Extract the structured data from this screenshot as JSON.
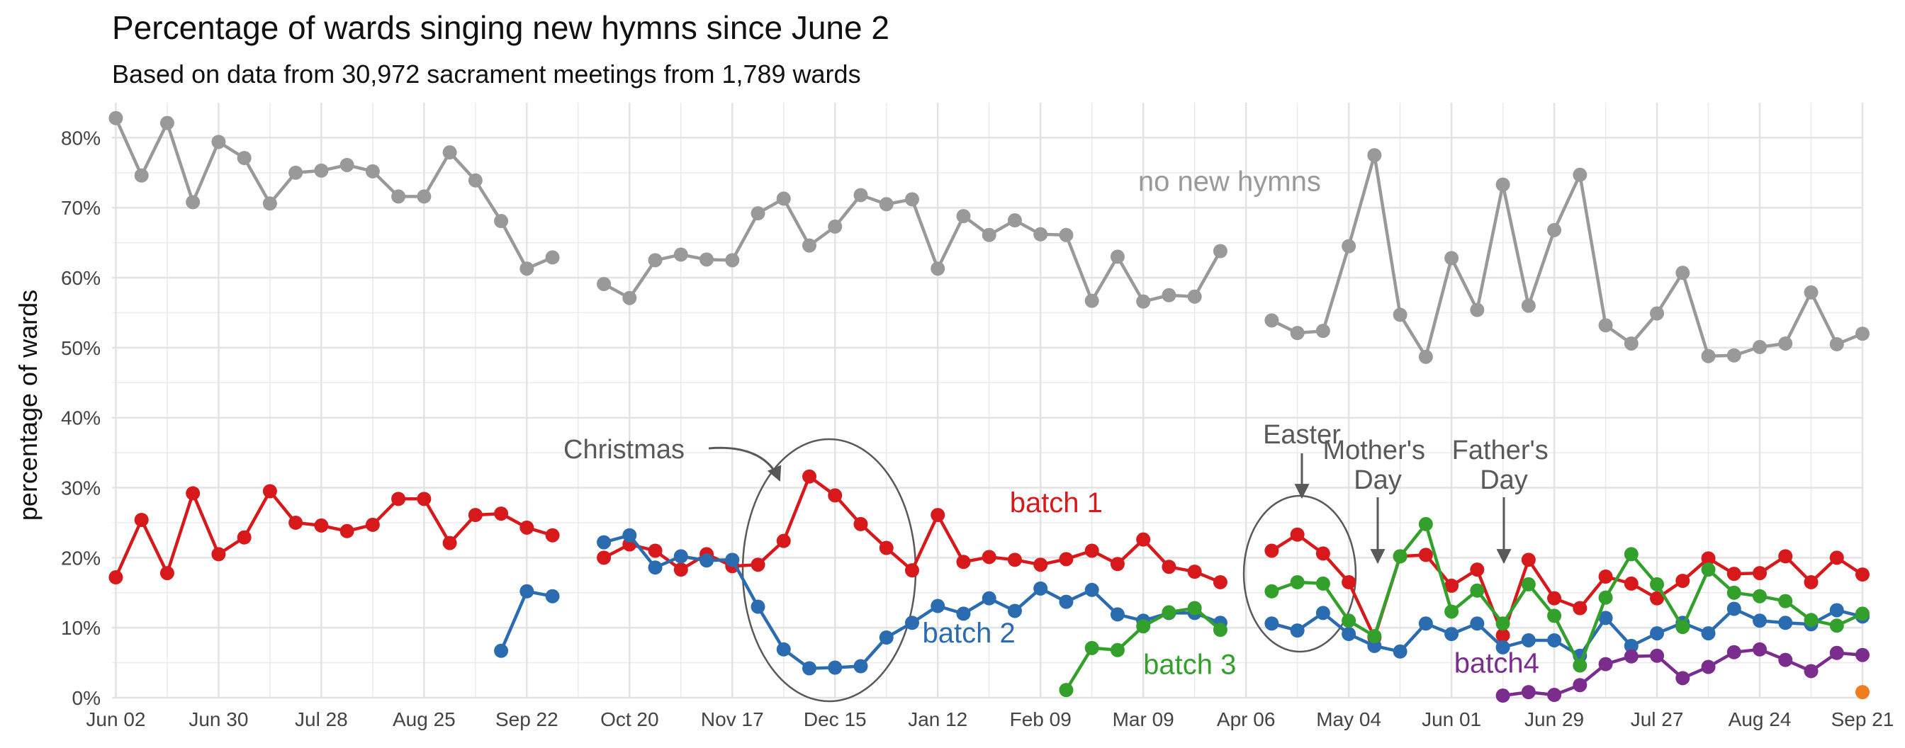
{
  "chart_data": {
    "type": "line",
    "title": "Percentage of wards singing new hymns since June 2",
    "subtitle": "Based on data from 30,972 sacrament meetings from 1,789 wards",
    "ylabel": "percentage of wards",
    "xlabel": "",
    "ylim": [
      0,
      85
    ],
    "yticks": [
      0,
      10,
      20,
      30,
      40,
      50,
      60,
      70,
      80
    ],
    "ytick_suffix": "%",
    "xlim": [
      -0.15,
      68
    ],
    "xtick_labels": [
      {
        "week": 0,
        "label": "Jun 02"
      },
      {
        "week": 4,
        "label": "Jun 30"
      },
      {
        "week": 8,
        "label": "Jul 28"
      },
      {
        "week": 12,
        "label": "Aug 25"
      },
      {
        "week": 16,
        "label": "Sep 22"
      },
      {
        "week": 20,
        "label": "Oct 20"
      },
      {
        "week": 24,
        "label": "Nov 17"
      },
      {
        "week": 28,
        "label": "Dec 15"
      },
      {
        "week": 32,
        "label": "Jan 12"
      },
      {
        "week": 36,
        "label": "Feb 09"
      },
      {
        "week": 40,
        "label": "Mar 09"
      },
      {
        "week": 44,
        "label": "Apr 06"
      },
      {
        "week": 48,
        "label": "May 04"
      },
      {
        "week": 52,
        "label": "Jun 01"
      },
      {
        "week": 56,
        "label": "Jun 29"
      },
      {
        "week": 60,
        "label": "Jul 27"
      },
      {
        "week": 64,
        "label": "Aug 24"
      },
      {
        "week": 68,
        "label": "Sep 21"
      }
    ],
    "grid": true,
    "series": [
      {
        "name": "no new hymns",
        "color": "#999999",
        "start": 0,
        "values": [
          82.8,
          74.6,
          82.1,
          70.8,
          79.4,
          77.1,
          70.6,
          75.0,
          75.3,
          76.1,
          75.2,
          71.6,
          71.6,
          77.9,
          73.9,
          68.1,
          61.3,
          62.9,
          null,
          59.1,
          57.1,
          62.5,
          63.3,
          62.6,
          62.5,
          69.2,
          71.3,
          64.6,
          67.3,
          71.8,
          70.5,
          71.2,
          61.3,
          68.8,
          66.1,
          68.2,
          66.2,
          66.1,
          56.7,
          63.0,
          56.6,
          57.5,
          57.3,
          63.8,
          null,
          53.9,
          52.1,
          52.4,
          64.5,
          77.5,
          54.7,
          48.7,
          62.8,
          55.4,
          73.3,
          56.0,
          66.8,
          74.7,
          53.2,
          50.6,
          54.9,
          60.7,
          48.8,
          48.9,
          50.1,
          50.6,
          57.9,
          50.5,
          52.0
        ]
      },
      {
        "name": "batch 1",
        "color": "#d7191c",
        "start": 0,
        "values": [
          17.2,
          25.4,
          17.8,
          29.2,
          20.5,
          22.9,
          29.5,
          25.0,
          24.6,
          23.8,
          24.7,
          28.4,
          28.4,
          22.1,
          26.1,
          26.3,
          24.3,
          23.2,
          null,
          20.0,
          21.9,
          21.0,
          18.3,
          20.5,
          18.8,
          19.0,
          22.4,
          31.6,
          28.9,
          24.8,
          21.4,
          18.2,
          26.1,
          19.4,
          20.1,
          19.7,
          19.0,
          19.8,
          21.0,
          19.1,
          22.6,
          18.7,
          18.0,
          16.5,
          null,
          21.0,
          23.3,
          20.6,
          16.5,
          8.6,
          20.2,
          20.4,
          16.0,
          18.3,
          8.9,
          19.7,
          14.2,
          12.8,
          17.3,
          16.3,
          14.2,
          16.7,
          19.9,
          17.7,
          17.8,
          20.2,
          16.5,
          20.0,
          17.6
        ]
      },
      {
        "name": "batch 2",
        "color": "#2b6cb0",
        "start": 15,
        "values": [
          6.7,
          15.2,
          14.5,
          null,
          22.2,
          23.2,
          18.6,
          20.2,
          19.6,
          19.7,
          13.0,
          6.9,
          4.2,
          4.3,
          4.5,
          8.6,
          10.7,
          13.1,
          12.0,
          14.2,
          12.4,
          15.6,
          13.7,
          15.4,
          11.9,
          11.0,
          12.1,
          12.1,
          10.7,
          null,
          10.6,
          9.6,
          12.1,
          9.1,
          7.4,
          6.6,
          10.6,
          9.1,
          10.6,
          7.2,
          8.2,
          8.2,
          6.0,
          11.4,
          7.4,
          9.2,
          10.7,
          9.2,
          12.7,
          11.0,
          10.7,
          10.5,
          12.5,
          11.6
        ]
      },
      {
        "name": "batch 3",
        "color": "#33a02c",
        "start": 37,
        "values": [
          1.1,
          7.1,
          6.8,
          10.2,
          12.2,
          12.8,
          9.7,
          null,
          15.2,
          16.5,
          16.3,
          11.0,
          8.8,
          20.2,
          24.8,
          12.3,
          15.3,
          10.6,
          16.2,
          11.7,
          4.6,
          14.3,
          20.5,
          16.2,
          10.1,
          18.3,
          15.0,
          14.5,
          13.8,
          11.1,
          10.3,
          12.0
        ]
      },
      {
        "name": "batch4",
        "color": "#7b2d8e",
        "start": 54,
        "values": [
          0.3,
          0.8,
          0.4,
          1.8,
          4.8,
          5.9,
          6.0,
          2.8,
          4.4,
          6.5,
          6.9,
          5.4,
          3.8,
          6.4,
          6.1
        ]
      },
      {
        "name": "",
        "color": "#f07c1e",
        "start": 68,
        "line": false,
        "values": [
          0.8
        ]
      }
    ],
    "series_label_positions": [
      {
        "series": 0,
        "x": 39.8,
        "y": 72.4,
        "anchor": "start"
      },
      {
        "series": 1,
        "x": 34.8,
        "y": 26.5,
        "anchor": "start"
      },
      {
        "series": 2,
        "x": 31.4,
        "y": 7.9,
        "anchor": "start"
      },
      {
        "series": 3,
        "x": 40.0,
        "y": 3.4,
        "anchor": "start"
      },
      {
        "series": 4,
        "x": 52.1,
        "y": 3.6,
        "anchor": "start"
      }
    ],
    "annotations": [
      {
        "label": "Christmas"
      },
      {
        "label": "Easter"
      },
      {
        "label": "Mother's\nDay"
      },
      {
        "label": "Father's\nDay"
      }
    ]
  }
}
